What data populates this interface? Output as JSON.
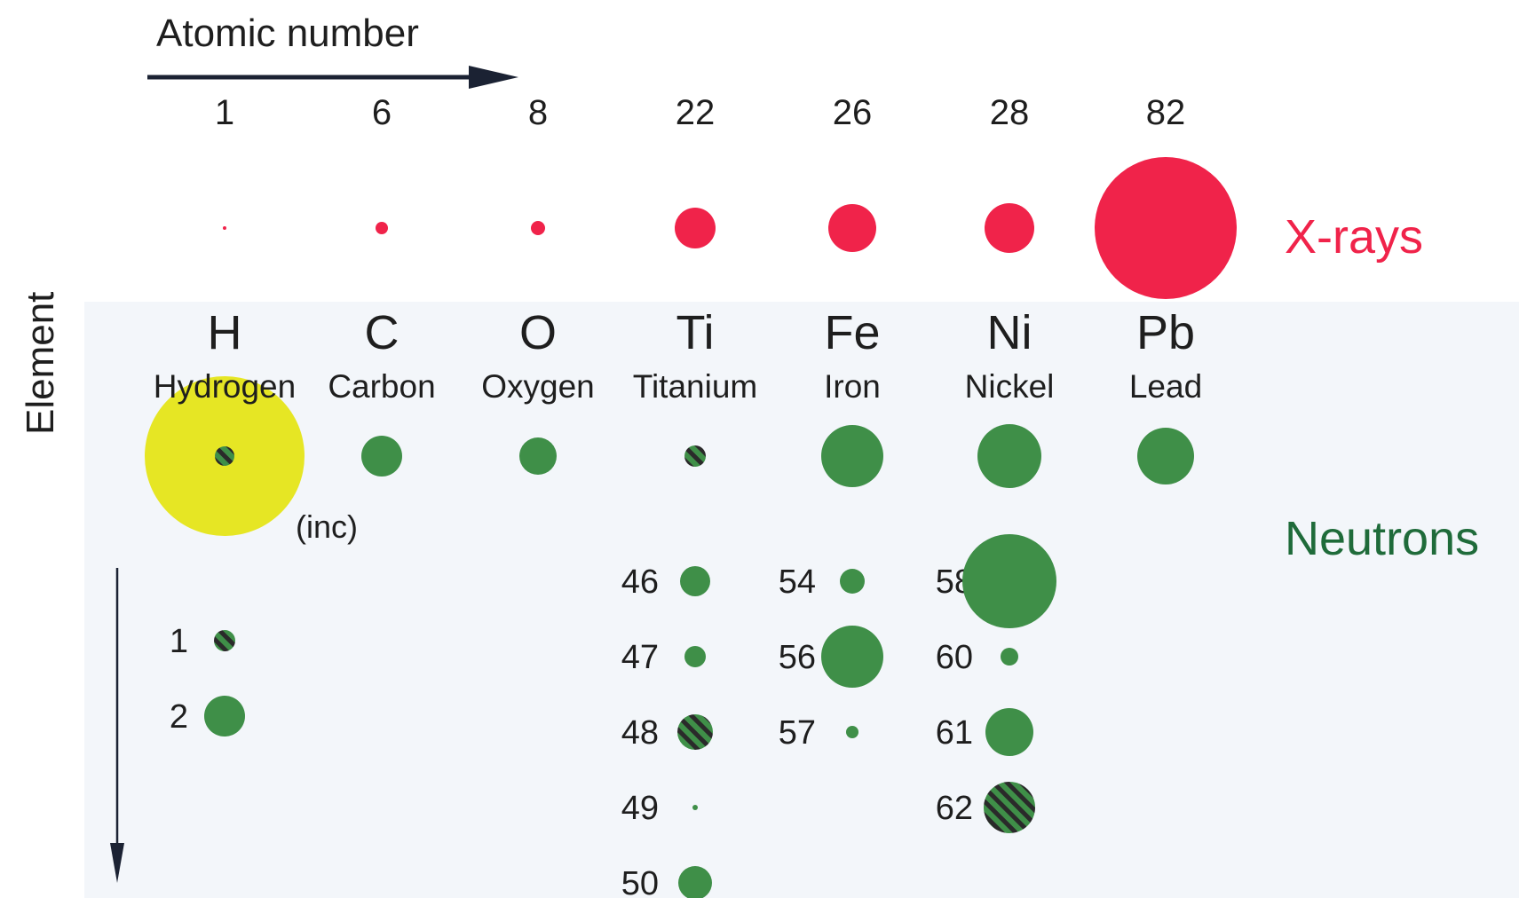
{
  "labels": {
    "atomic_number": "Atomic number",
    "element": "Element",
    "xrays": "X-rays",
    "neutrons": "Neutrons",
    "incoherent": "(inc)"
  },
  "colors": {
    "xray": "#f0234a",
    "neutron": "#3f8f48",
    "incoherent": "#e6e624",
    "xray_label": "#f0234a",
    "neutron_label": "#1f6b3a",
    "stripes": "#2a2a2a",
    "background_shade": "#f2f6fa"
  },
  "elements": [
    {
      "z": "1",
      "symbol": "H",
      "name": "Hydrogen",
      "xray_size": 2,
      "neutron_size": 11,
      "neutron_negative": true,
      "incoherent_size": 90
    },
    {
      "z": "6",
      "symbol": "C",
      "name": "Carbon",
      "xray_size": 7,
      "neutron_size": 23,
      "neutron_negative": false
    },
    {
      "z": "8",
      "symbol": "O",
      "name": "Oxygen",
      "xray_size": 8,
      "neutron_size": 21,
      "neutron_negative": false
    },
    {
      "z": "22",
      "symbol": "Ti",
      "name": "Titanium",
      "xray_size": 23,
      "neutron_size": 12,
      "neutron_negative": true
    },
    {
      "z": "26",
      "symbol": "Fe",
      "name": "Iron",
      "xray_size": 27,
      "neutron_size": 35,
      "neutron_negative": false
    },
    {
      "z": "28",
      "symbol": "Ni",
      "name": "Nickel",
      "xray_size": 28,
      "neutron_size": 36,
      "neutron_negative": false
    },
    {
      "z": "82",
      "symbol": "Pb",
      "name": "Lead",
      "xray_size": 80,
      "neutron_size": 32,
      "neutron_negative": false
    }
  ],
  "isotopes": [
    {
      "element": "H",
      "isotopes": [
        {
          "mass": "1",
          "size": 12,
          "negative": true
        },
        {
          "mass": "2",
          "size": 23,
          "negative": false
        }
      ]
    },
    {
      "element": "Ti",
      "isotopes": [
        {
          "mass": "46",
          "size": 17,
          "negative": false
        },
        {
          "mass": "47",
          "size": 12,
          "negative": false
        },
        {
          "mass": "48",
          "size": 20,
          "negative": true
        },
        {
          "mass": "49",
          "size": 3,
          "negative": false
        },
        {
          "mass": "50",
          "size": 19,
          "negative": false
        }
      ]
    },
    {
      "element": "Fe",
      "isotopes": [
        {
          "mass": "54",
          "size": 14,
          "negative": false
        },
        {
          "mass": "56",
          "size": 35,
          "negative": false
        },
        {
          "mass": "57",
          "size": 7,
          "negative": false
        }
      ]
    },
    {
      "element": "Ni",
      "isotopes": [
        {
          "mass": "58",
          "size": 53,
          "negative": false
        },
        {
          "mass": "60",
          "size": 10,
          "negative": false
        },
        {
          "mass": "61",
          "size": 27,
          "negative": false
        },
        {
          "mass": "62",
          "size": 29,
          "negative": true
        }
      ]
    }
  ]
}
